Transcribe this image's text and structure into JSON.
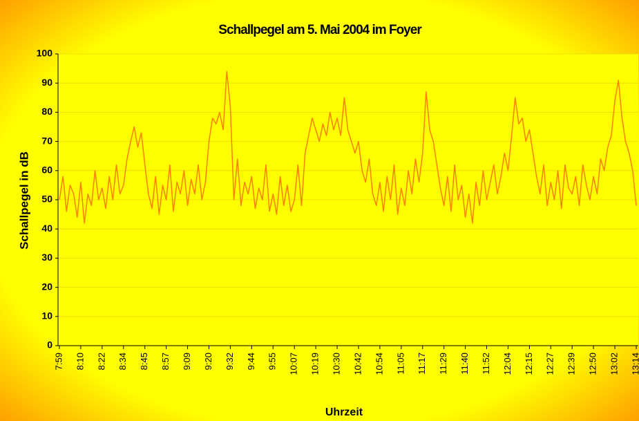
{
  "chart_data": {
    "type": "line",
    "title": "Schallpegel am 5. Mai 2004 im Foyer",
    "xlabel": "Uhrzeit",
    "ylabel": "Schallpegel in dB",
    "categories": [
      "7:59",
      null,
      null,
      null,
      null,
      null,
      "8:10",
      null,
      null,
      null,
      null,
      null,
      "8:22",
      null,
      null,
      null,
      null,
      null,
      "8:34",
      null,
      null,
      null,
      null,
      null,
      "8:45",
      null,
      null,
      null,
      null,
      null,
      "8:57",
      null,
      null,
      null,
      null,
      null,
      "9:09",
      null,
      null,
      null,
      null,
      null,
      "9:20",
      null,
      null,
      null,
      null,
      null,
      "9:32",
      null,
      null,
      null,
      null,
      null,
      "9:44",
      null,
      null,
      null,
      null,
      null,
      "9:55",
      null,
      null,
      null,
      null,
      null,
      "10:07",
      null,
      null,
      null,
      null,
      null,
      "10:19",
      null,
      null,
      null,
      null,
      null,
      "10:30",
      null,
      null,
      null,
      null,
      null,
      "10:42",
      null,
      null,
      null,
      null,
      null,
      "10:54",
      null,
      null,
      null,
      null,
      null,
      "11:05",
      null,
      null,
      null,
      null,
      null,
      "11:17",
      null,
      null,
      null,
      null,
      null,
      "11:29",
      null,
      null,
      null,
      null,
      null,
      "11:40",
      null,
      null,
      null,
      null,
      null,
      "11:52",
      null,
      null,
      null,
      null,
      null,
      "12:04",
      null,
      null,
      null,
      null,
      null,
      "12:15",
      null,
      null,
      null,
      null,
      null,
      "12:27",
      null,
      null,
      null,
      null,
      null,
      "12:39",
      null,
      null,
      null,
      null,
      null,
      "12:50",
      null,
      null,
      null,
      null,
      null,
      "13:02",
      null,
      null,
      null,
      null,
      null,
      "13:14"
    ],
    "series": [
      {
        "name": "Schallpegel",
        "color": "#ff8000",
        "values": [
          50,
          58,
          46,
          55,
          52,
          44,
          56,
          42,
          52,
          48,
          60,
          50,
          54,
          47,
          58,
          50,
          62,
          52,
          55,
          64,
          70,
          75,
          68,
          73,
          62,
          52,
          47,
          58,
          45,
          55,
          50,
          62,
          46,
          56,
          52,
          60,
          48,
          57,
          52,
          62,
          50,
          56,
          70,
          78,
          76,
          80,
          74,
          94,
          82,
          50,
          64,
          48,
          56,
          52,
          58,
          47,
          54,
          50,
          62,
          46,
          52,
          45,
          58,
          48,
          55,
          46,
          50,
          62,
          48,
          66,
          72,
          78,
          74,
          70,
          76,
          72,
          80,
          74,
          78,
          72,
          85,
          74,
          70,
          66,
          70,
          60,
          56,
          64,
          52,
          48,
          56,
          46,
          58,
          50,
          62,
          45,
          54,
          48,
          60,
          52,
          64,
          56,
          66,
          87,
          74,
          70,
          62,
          54,
          48,
          58,
          46,
          62,
          50,
          55,
          44,
          52,
          42,
          56,
          48,
          60,
          50,
          56,
          62,
          52,
          58,
          66,
          60,
          72,
          85,
          76,
          78,
          70,
          74,
          66,
          58,
          52,
          62,
          48,
          56,
          50,
          60,
          47,
          62,
          54,
          52,
          58,
          48,
          62,
          55,
          50,
          58,
          52,
          64,
          60,
          68,
          72,
          84,
          91,
          78,
          70,
          66,
          60,
          48
        ]
      }
    ],
    "ylim": [
      0,
      100
    ],
    "yticks": [
      0,
      10,
      20,
      30,
      40,
      50,
      60,
      70,
      80,
      90,
      100
    ],
    "grid": true
  }
}
